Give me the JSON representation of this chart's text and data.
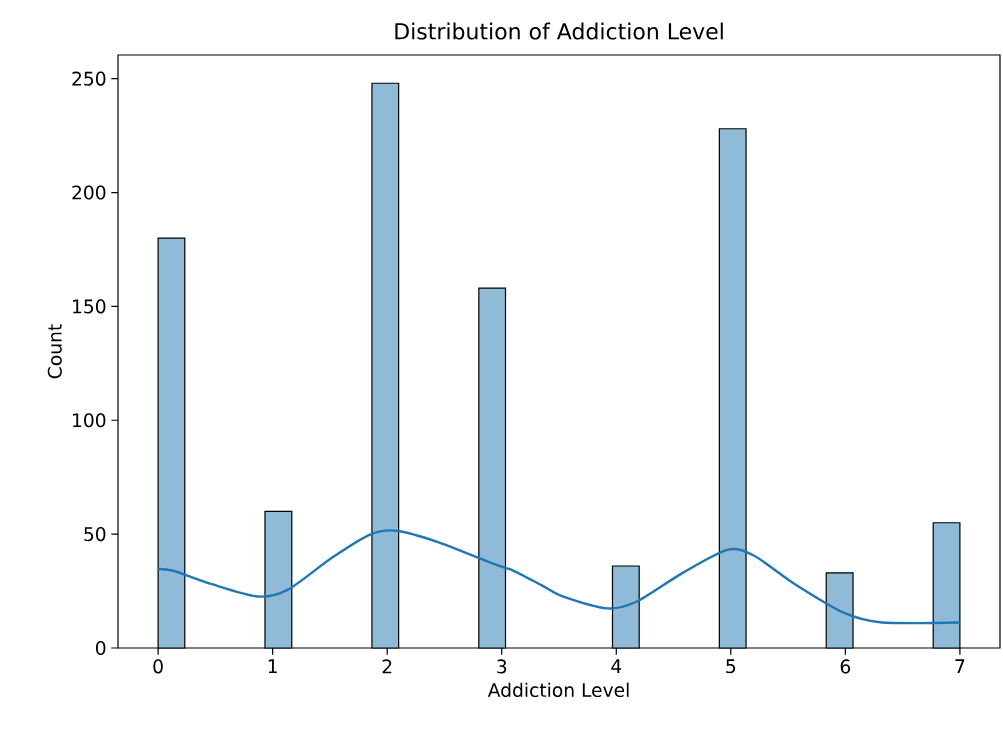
{
  "chart_data": {
    "type": "histogram",
    "title": "Distribution of Addiction Level",
    "xlabel": "Addiction Level",
    "ylabel": "Count",
    "color": "#8fbbd9",
    "bins": [
      0,
      0.233,
      0.467,
      0.7,
      0.933,
      1.167,
      1.4,
      1.633,
      1.867,
      2.1,
      2.333,
      2.567,
      2.8,
      3.033,
      3.267,
      3.5,
      3.733,
      3.967,
      4.2,
      4.433,
      4.667,
      4.9,
      5.133,
      5.367,
      5.6,
      5.833,
      6.067,
      6.3,
      6.533,
      6.767,
      7
    ],
    "values": [
      180,
      0,
      0,
      0,
      60,
      0,
      0,
      0,
      248,
      0,
      0,
      0,
      158,
      0,
      0,
      0,
      0,
      36,
      0,
      0,
      0,
      228,
      0,
      0,
      0,
      33,
      0,
      0,
      0,
      55
    ],
    "series": [
      {
        "type": "line",
        "color": "#1f77b4",
        "x": [
          0,
          0.14,
          0.47,
          0.87,
          1.13,
          1.52,
          1.85,
          2.08,
          2.45,
          2.94,
          3.1,
          3.35,
          3.52,
          3.92,
          4.18,
          4.58,
          4.97,
          5.2,
          5.56,
          5.99,
          6.32,
          7
        ],
        "values": [
          34.7,
          33.8,
          28,
          22.6,
          25.5,
          39.7,
          49.8,
          51.5,
          46.4,
          36.7,
          34,
          27.5,
          22.9,
          17.4,
          20.4,
          33,
          43.1,
          40.6,
          28,
          15.4,
          11.2,
          11.2
        ]
      }
    ],
    "xlim": [
      -0.35,
      7.35
    ],
    "ylim": [
      0,
      260.4
    ],
    "xticks": [
      0,
      1,
      2,
      3,
      4,
      5,
      6,
      7
    ],
    "yticks": [
      0,
      50,
      100,
      150,
      200,
      250
    ]
  }
}
